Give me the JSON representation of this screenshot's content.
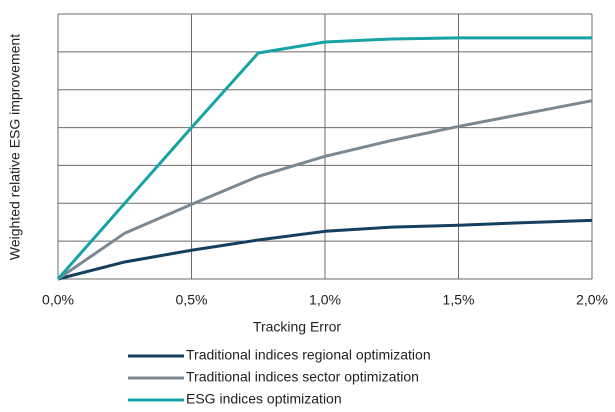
{
  "chart_data": {
    "type": "line",
    "xlabel": "Tracking Error",
    "ylabel": "Weighted relative ESG improvement",
    "x": [
      0,
      0.25,
      0.5,
      0.75,
      1.0,
      1.25,
      1.5,
      1.75,
      2.0
    ],
    "series": [
      {
        "name": "Traditional indices regional optimization",
        "color": "#143f5e",
        "values": [
          0,
          0.45,
          0.76,
          1.03,
          1.26,
          1.37,
          1.42,
          1.49,
          1.55
        ]
      },
      {
        "name": "Traditional indices sector optimization",
        "color": "#7a8891",
        "values": [
          0,
          1.21,
          1.97,
          2.71,
          3.24,
          3.66,
          4.03,
          4.37,
          4.71
        ]
      },
      {
        "name": "ESG indices optimization",
        "color": "#17a3a5",
        "values": [
          0,
          2.0,
          4.0,
          5.97,
          6.26,
          6.34,
          6.37,
          6.37,
          6.37
        ]
      }
    ],
    "xlim": [
      0,
      2.0
    ],
    "xticks": [
      {
        "value": 0,
        "label": "0,0%"
      },
      {
        "value": 0.5,
        "label": "0,5%"
      },
      {
        "value": 1.0,
        "label": "1,0%"
      },
      {
        "value": 1.5,
        "label": "1,5%"
      },
      {
        "value": 2.0,
        "label": "2,0%"
      }
    ],
    "ylim": [
      0,
      7
    ],
    "yticks": [
      0,
      1,
      2,
      3,
      4,
      5,
      6,
      7
    ],
    "show_ytick_labels": false,
    "grid": true
  }
}
